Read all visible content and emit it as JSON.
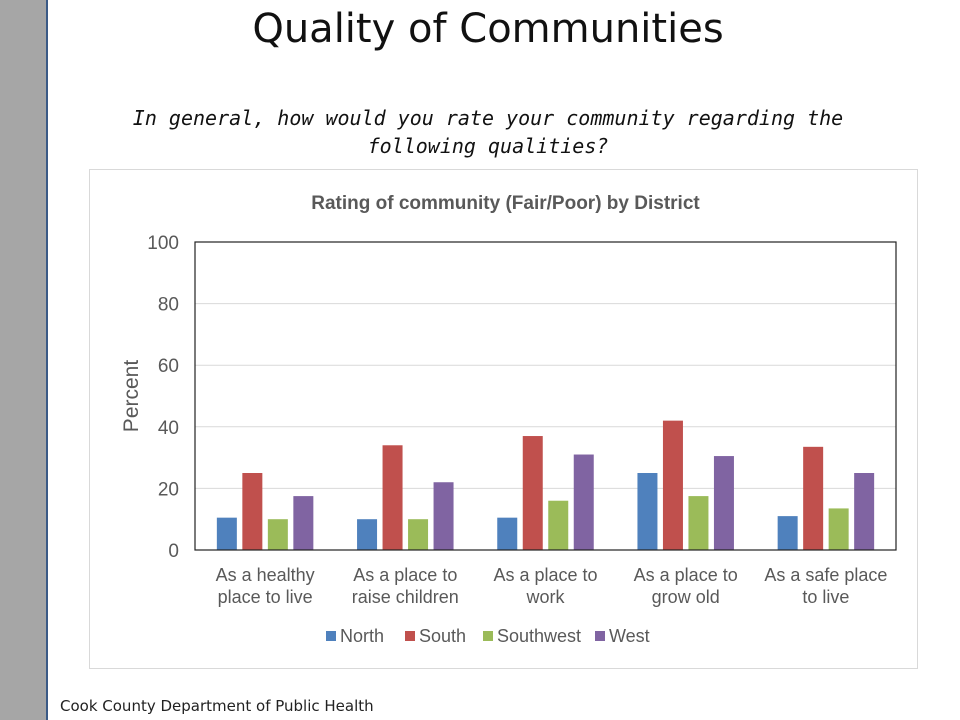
{
  "slide": {
    "title": "Quality of Communities",
    "subtitle": "In general, how would you rate your community regarding the following qualities?",
    "footer": "Cook County Department of Public Health"
  },
  "chart_data": {
    "type": "bar",
    "title": "Rating of community (Fair/Poor) by District",
    "xlabel": "",
    "ylabel": "Percent",
    "ylim": [
      0,
      100
    ],
    "yticks": [
      0,
      20,
      40,
      60,
      80,
      100
    ],
    "grid": true,
    "legend_position": "bottom",
    "categories": [
      [
        "As a healthy",
        "place to live"
      ],
      [
        "As a place to",
        "raise children"
      ],
      [
        "As a place to",
        "work"
      ],
      [
        "As a place to",
        "grow old"
      ],
      [
        "As a safe place",
        "to live"
      ]
    ],
    "series": [
      {
        "name": "North",
        "color": "#4f81bd",
        "values": [
          10.5,
          10,
          10.5,
          25,
          11
        ]
      },
      {
        "name": "South",
        "color": "#c0504d",
        "values": [
          25,
          34,
          37,
          42,
          33.5
        ]
      },
      {
        "name": "Southwest",
        "color": "#9bbb59",
        "values": [
          10,
          10,
          16,
          17.5,
          13.5
        ]
      },
      {
        "name": "West",
        "color": "#8064a2",
        "values": [
          17.5,
          22,
          31,
          30.5,
          25
        ]
      }
    ]
  }
}
